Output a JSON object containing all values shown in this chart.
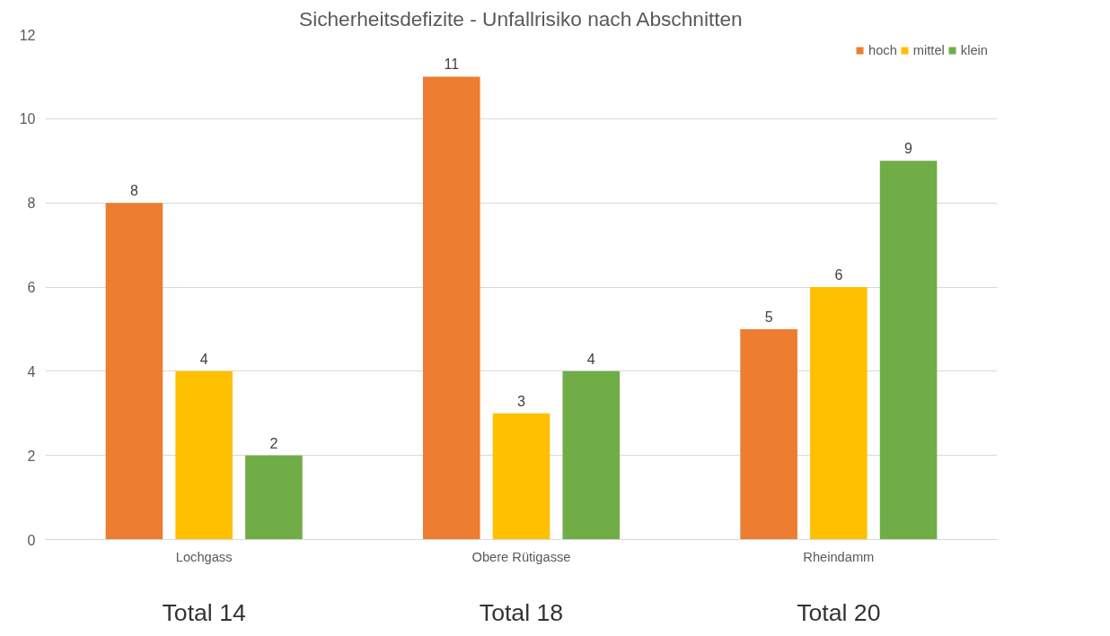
{
  "chart_data": {
    "type": "bar",
    "title": "Sicherheitsdefizite - Unfallrisiko nach Abschnitten",
    "categories": [
      "Lochgass",
      "Obere Rütigasse",
      "Rheindamm"
    ],
    "series": [
      {
        "name": "hoch",
        "color": "#ed7d31",
        "values": [
          8,
          11,
          5
        ]
      },
      {
        "name": "mittel",
        "color": "#ffc000",
        "values": [
          4,
          3,
          6
        ]
      },
      {
        "name": "klein",
        "color": "#70ad47",
        "values": [
          2,
          4,
          9
        ]
      }
    ],
    "ylim": [
      0,
      12
    ],
    "yticks": [
      0,
      2,
      4,
      6,
      8,
      10,
      12
    ],
    "grid": "y",
    "legend": "top right",
    "data_labels": true,
    "totals": [
      "Total 14",
      "Total 18",
      "Total 20"
    ]
  }
}
